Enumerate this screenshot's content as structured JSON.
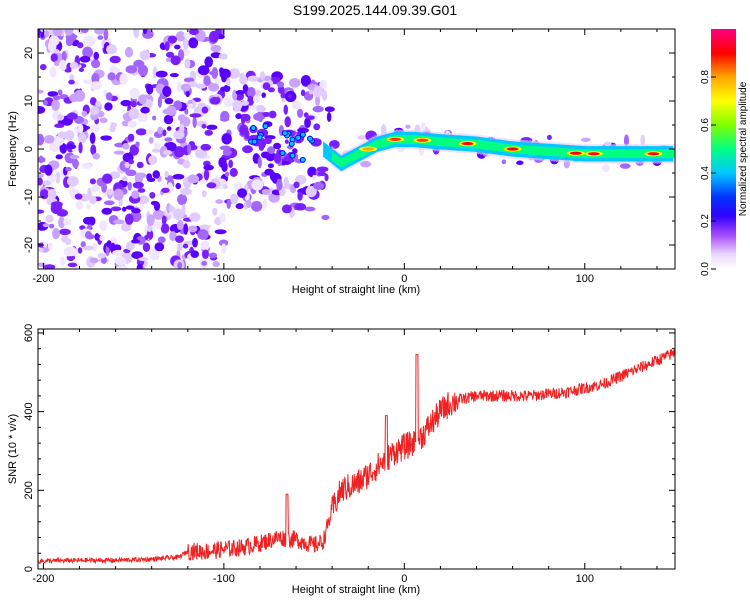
{
  "title": "S199.2025.144.09.39.G01",
  "chart_data": [
    {
      "type": "heatmap",
      "xlabel": "Height of straight line (km)",
      "ylabel": "Frequency (Hz)",
      "xlim": [
        -203,
        150
      ],
      "ylim": [
        -25,
        25
      ],
      "xticks": [
        -200,
        -100,
        0,
        100
      ],
      "yticks": [
        -20,
        -10,
        0,
        10,
        20
      ],
      "colorbar": {
        "label": "Normalized spectral amplitude",
        "range": [
          0,
          1
        ],
        "ticks": [
          0.0,
          0.2,
          0.4,
          0.6,
          0.8
        ],
        "colors": [
          "#ffffff",
          "#e6ccff",
          "#a64dff",
          "#5a00ff",
          "#0000ff",
          "#00c8ff",
          "#00ff80",
          "#80ff00",
          "#ffff00",
          "#ffa500",
          "#ff0000",
          "#ff0080"
        ]
      },
      "ridge": [
        {
          "x": -80,
          "f": 2
        },
        {
          "x": -60,
          "f": 0.5
        },
        {
          "x": -45,
          "f": 0
        },
        {
          "x": -35,
          "f": -3
        },
        {
          "x": -25,
          "f": -1
        },
        {
          "x": -15,
          "f": 1
        },
        {
          "x": -5,
          "f": 2
        },
        {
          "x": 5,
          "f": 2
        },
        {
          "x": 20,
          "f": 1.5
        },
        {
          "x": 40,
          "f": 1
        },
        {
          "x": 60,
          "f": 0
        },
        {
          "x": 80,
          "f": -0.5
        },
        {
          "x": 100,
          "f": -1
        },
        {
          "x": 120,
          "f": -1
        },
        {
          "x": 150,
          "f": -1
        }
      ]
    },
    {
      "type": "line",
      "xlabel": "Height of straight line (km)",
      "ylabel": "SNR (10 * v/v)",
      "xlim": [
        -203,
        150
      ],
      "ylim": [
        0,
        610
      ],
      "xticks": [
        -200,
        -100,
        0,
        100
      ],
      "yticks": [
        0,
        200,
        400,
        600
      ],
      "color": "#ee2222",
      "x": [
        -203,
        -180,
        -160,
        -140,
        -125,
        -120,
        -110,
        -100,
        -90,
        -80,
        -70,
        -60,
        -50,
        -45,
        -40,
        -35,
        -30,
        -25,
        -20,
        -15,
        -10,
        -5,
        0,
        5,
        10,
        15,
        20,
        25,
        30,
        40,
        50,
        60,
        70,
        80,
        90,
        100,
        110,
        120,
        130,
        140,
        150
      ],
      "y": [
        20,
        22,
        22,
        25,
        30,
        45,
        45,
        50,
        55,
        65,
        80,
        75,
        60,
        70,
        150,
        200,
        210,
        220,
        240,
        260,
        280,
        300,
        310,
        320,
        340,
        370,
        400,
        420,
        430,
        440,
        440,
        440,
        440,
        445,
        450,
        460,
        470,
        490,
        510,
        530,
        550
      ],
      "spikes": [
        {
          "x": -65,
          "y": 190
        },
        {
          "x": -10,
          "y": 390
        },
        {
          "x": 7,
          "y": 545
        }
      ]
    }
  ]
}
